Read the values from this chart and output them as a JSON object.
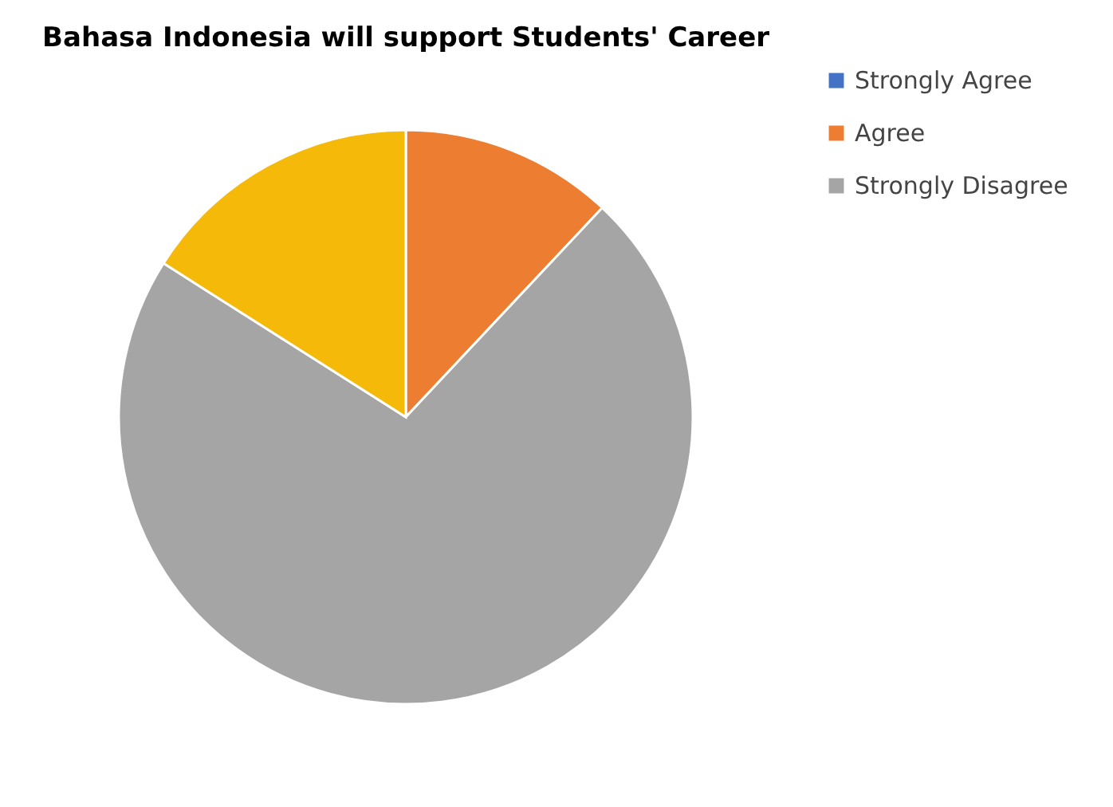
{
  "chart_data": {
    "type": "pie",
    "title": "Bahasa Indonesia will support Students' Career",
    "categories": [
      "Strongly Agree",
      "Agree",
      "Strongly Disagree",
      null
    ],
    "values": [
      0,
      12,
      72,
      16
    ],
    "colors": [
      "#4472c4",
      "#ed7d31",
      "#a5a5a5",
      "#f5b90a"
    ],
    "legend": "right"
  }
}
